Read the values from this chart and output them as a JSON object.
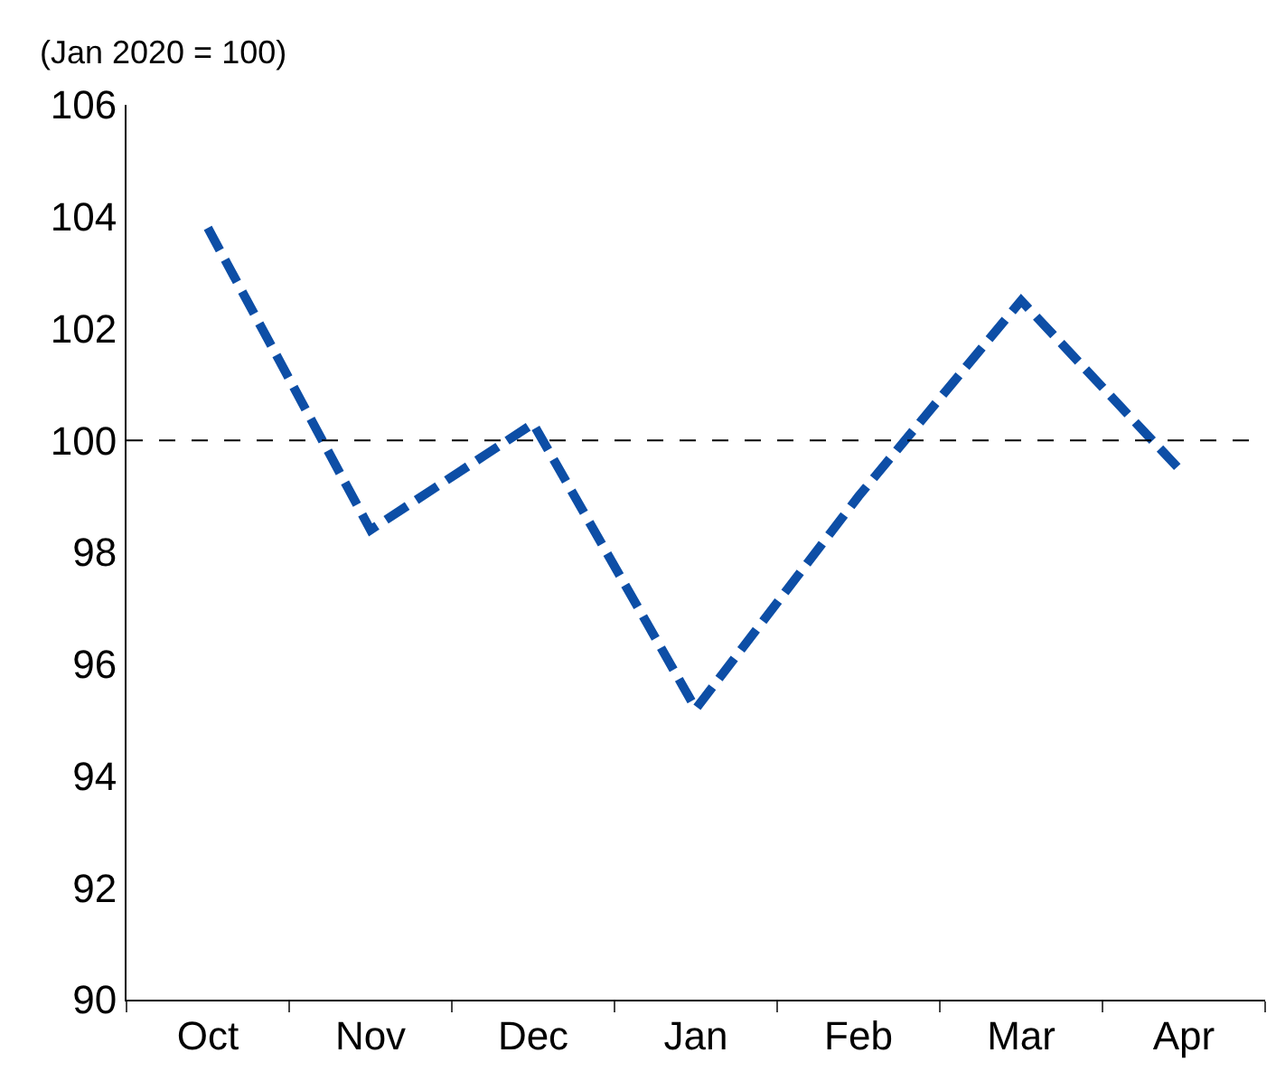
{
  "chart_data": {
    "type": "line",
    "ylabel": "(Jan 2020 = 100)",
    "categories": [
      "Oct",
      "Nov",
      "Dec",
      "Jan",
      "Feb",
      "Mar",
      "Apr"
    ],
    "series": [
      {
        "color": "#0d4ea6",
        "values": [
          103.8,
          98.4,
          100.3,
          95.2,
          99.0,
          102.5,
          99.4
        ]
      }
    ],
    "ylim": [
      90,
      106
    ],
    "yticks": [
      90,
      92,
      94,
      96,
      98,
      100,
      102,
      104,
      106
    ],
    "ref_lines": [
      {
        "axis": "y",
        "value": 100,
        "color": "#000000",
        "line_style": "dashed"
      }
    ],
    "marker": "none",
    "line_style": "dashed"
  }
}
